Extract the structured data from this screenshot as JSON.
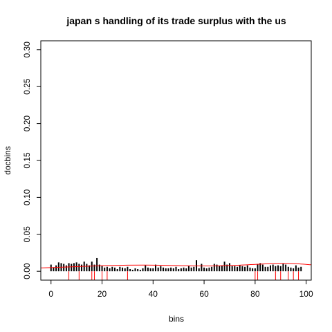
{
  "chart_data": {
    "type": "bar",
    "title": "japan s handling of its trade surplus with the us",
    "xlabel": "bins",
    "ylabel": "docbins",
    "xlim": [
      -4,
      102
    ],
    "ylim": [
      -0.012,
      0.312
    ],
    "xticks": [
      {
        "value": 0,
        "label": "0"
      },
      {
        "value": 20,
        "label": "20"
      },
      {
        "value": 40,
        "label": "40"
      },
      {
        "value": 60,
        "label": "60"
      },
      {
        "value": 80,
        "label": "80"
      },
      {
        "value": 100,
        "label": "100"
      }
    ],
    "yticks": [
      {
        "value": 0.0,
        "label": "0.00"
      },
      {
        "value": 0.05,
        "label": "0.05"
      },
      {
        "value": 0.1,
        "label": "0.10"
      },
      {
        "value": 0.15,
        "label": "0.15"
      },
      {
        "value": 0.2,
        "label": "0.20"
      },
      {
        "value": 0.25,
        "label": "0.25"
      },
      {
        "value": 0.3,
        "label": "0.30"
      }
    ],
    "series": [
      {
        "style": "histogram-bars",
        "color": "#000000",
        "x": [
          0,
          1,
          2,
          3,
          4,
          5,
          6,
          7,
          8,
          9,
          10,
          11,
          12,
          13,
          14,
          15,
          16,
          17,
          18,
          19,
          20,
          21,
          22,
          23,
          24,
          25,
          26,
          27,
          28,
          29,
          30,
          31,
          32,
          33,
          34,
          35,
          36,
          37,
          38,
          39,
          40,
          41,
          42,
          43,
          44,
          45,
          46,
          47,
          48,
          49,
          50,
          51,
          52,
          53,
          54,
          55,
          56,
          57,
          58,
          59,
          60,
          61,
          62,
          63,
          64,
          65,
          66,
          67,
          68,
          69,
          70,
          71,
          72,
          73,
          74,
          75,
          76,
          77,
          78,
          79,
          80,
          81,
          82,
          83,
          84,
          85,
          86,
          87,
          88,
          89,
          90,
          91,
          92,
          93,
          94,
          95,
          96,
          97,
          98
        ],
        "values": [
          0.009,
          0.005,
          0.008,
          0.012,
          0.011,
          0.01,
          0.008,
          0.011,
          0.01,
          0.011,
          0.012,
          0.01,
          0.009,
          0.013,
          0.01,
          0.008,
          0.013,
          0.009,
          0.018,
          0.009,
          0.007,
          0.005,
          0.006,
          0.004,
          0.006,
          0.005,
          0.003,
          0.006,
          0.005,
          0.004,
          0.006,
          0.003,
          0.002,
          0.004,
          0.003,
          0.002,
          0.004,
          0.008,
          0.005,
          0.004,
          0.004,
          0.009,
          0.005,
          0.007,
          0.005,
          0.004,
          0.004,
          0.005,
          0.004,
          0.006,
          0.003,
          0.004,
          0.005,
          0.004,
          0.007,
          0.005,
          0.006,
          0.015,
          0.004,
          0.01,
          0.005,
          0.004,
          0.005,
          0.006,
          0.01,
          0.009,
          0.007,
          0.008,
          0.013,
          0.009,
          0.011,
          0.007,
          0.007,
          0.006,
          0.008,
          0.007,
          0.006,
          0.008,
          0.005,
          0.004,
          0.004,
          0.01,
          0.011,
          0.009,
          0.006,
          0.006,
          0.008,
          0.009,
          0.007,
          0.008,
          0.007,
          0.01,
          0.009,
          0.006,
          0.005,
          0.004,
          0.008,
          0.005,
          0.006
        ]
      },
      {
        "style": "smooth-curve",
        "color": "#ff0000",
        "x": [
          -4,
          0,
          10,
          20,
          30,
          40,
          50,
          60,
          70,
          80,
          88,
          95,
          102
        ],
        "values": [
          0.0045,
          0.005,
          0.0063,
          0.0075,
          0.0082,
          0.0083,
          0.0077,
          0.0072,
          0.0078,
          0.0093,
          0.0106,
          0.0103,
          0.0088
        ]
      },
      {
        "style": "rug",
        "color": "#ff0000",
        "x": [
          7,
          11,
          16,
          17,
          20,
          22,
          30,
          80,
          81,
          88,
          90,
          93,
          95,
          97
        ]
      }
    ]
  }
}
